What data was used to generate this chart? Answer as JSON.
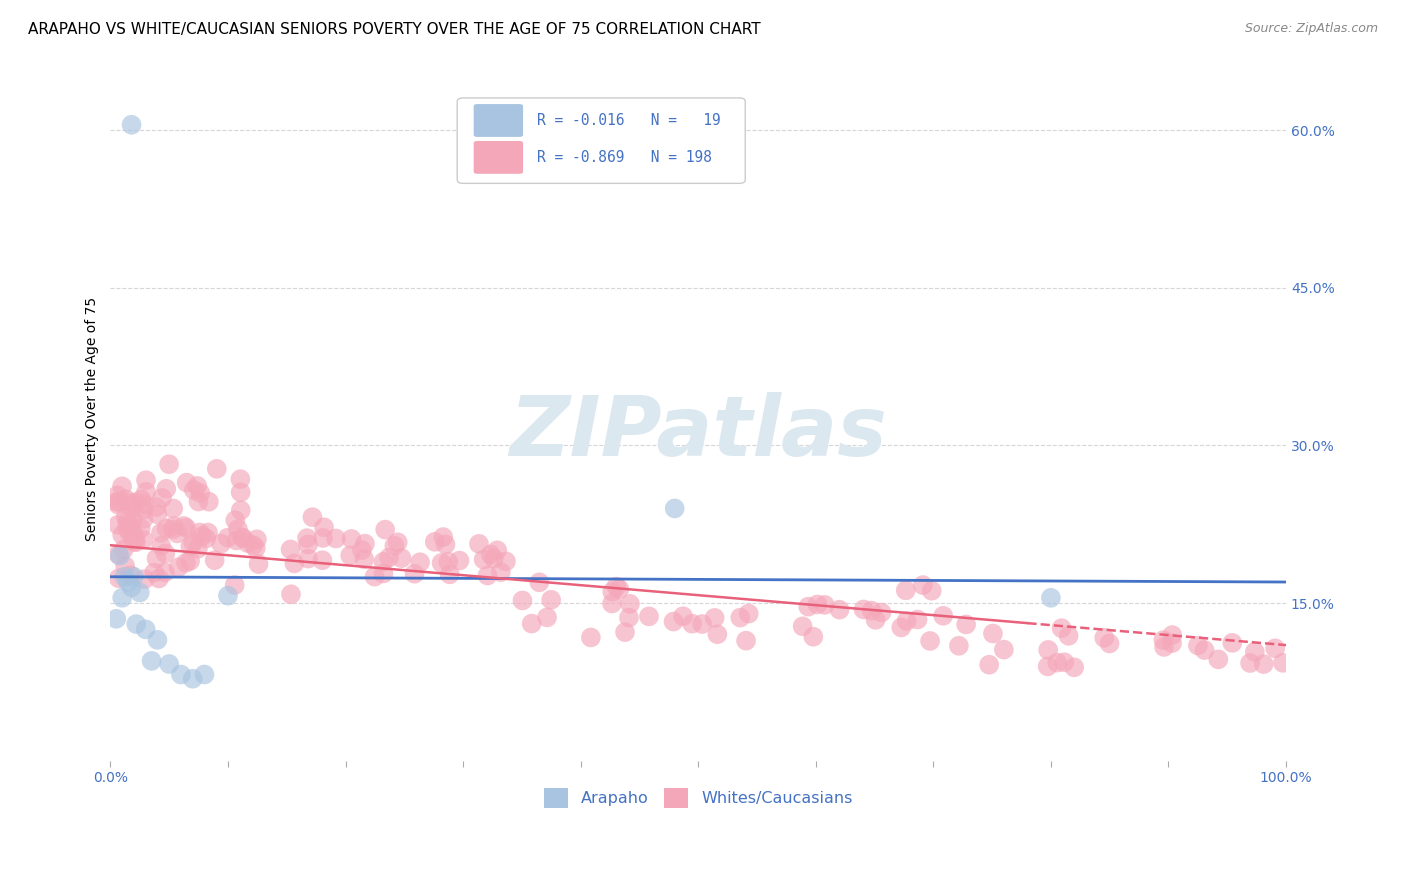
{
  "title": "ARAPAHO VS WHITE/CAUCASIAN SENIORS POVERTY OVER THE AGE OF 75 CORRELATION CHART",
  "source": "Source: ZipAtlas.com",
  "ylabel": "Seniors Poverty Over the Age of 75",
  "ytick_labels": [
    "15.0%",
    "30.0%",
    "45.0%",
    "60.0%"
  ],
  "ytick_values": [
    0.15,
    0.3,
    0.45,
    0.6
  ],
  "xlim": [
    0.0,
    1.0
  ],
  "ylim": [
    0.0,
    0.65
  ],
  "arapaho_color": "#a8c4e0",
  "arapaho_line_color": "#4472c4",
  "white_color": "#f4a7b9",
  "white_line_color": "#e8607a",
  "grid_color": "#cccccc",
  "background_color": "#ffffff",
  "title_fontsize": 11,
  "label_fontsize": 10,
  "tick_fontsize": 10,
  "legend_text_color": "#4472c4",
  "source_color": "#888888",
  "watermark_color": "#dce8f0"
}
